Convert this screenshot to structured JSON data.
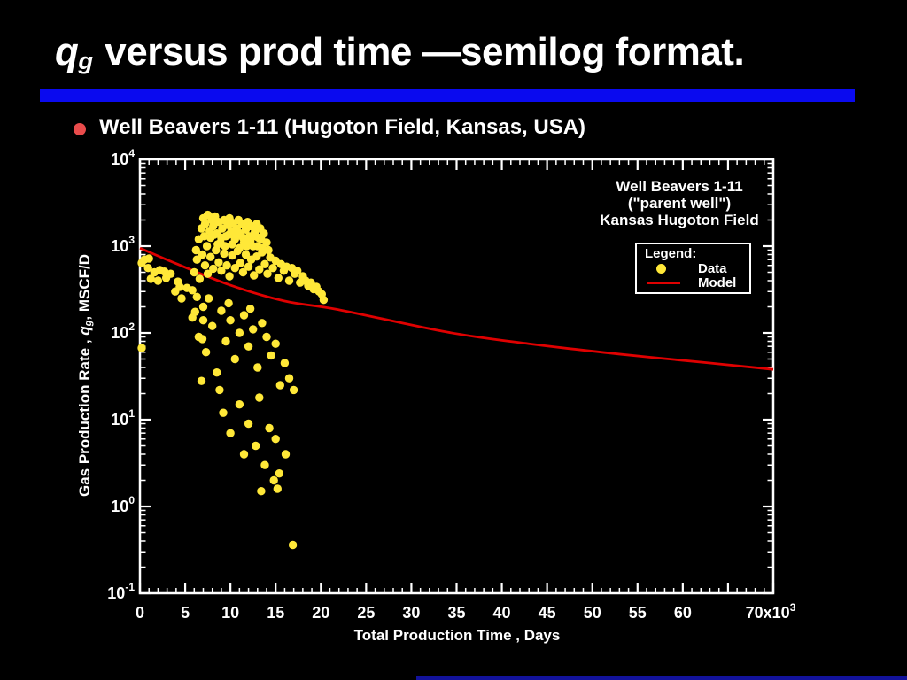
{
  "slide": {
    "title": {
      "q": "q",
      "q_sub": "g",
      "rest": " versus prod time —semilog format."
    },
    "bullet": {
      "text": "Well Beavers 1-11 (Hugoton Field, Kansas, USA)"
    }
  },
  "chart": {
    "annotation": {
      "line1": "Well Beavers 1-11",
      "line2": "(\"parent well\")",
      "line3": "Kansas Hugoton Field"
    },
    "legend": {
      "title": "Legend:",
      "data_label": "Data",
      "model_label": "Model"
    },
    "x_axis": {
      "label": "Total Production Time , Days",
      "tick_labels": [
        0,
        5,
        10,
        15,
        20,
        25,
        30,
        35,
        40,
        45,
        50,
        55,
        60
      ],
      "end_tick": {
        "text": "70x10",
        "exp": "3",
        "value": 70
      },
      "min": 0,
      "max": 70,
      "major_step": 5,
      "minor_step": 1
    },
    "y_axis": {
      "label_prefix": "Gas Production Rate , ",
      "label_var": "q",
      "label_var_sub": "g",
      "label_suffix": ", MSCF/D",
      "scale": "log",
      "decade_exponents": [
        4,
        3,
        2,
        1,
        0,
        -1
      ]
    }
  },
  "chart_data": {
    "type": "scatter",
    "title": "qg versus production time, semilog format",
    "xlabel": "Total Production Time , Days",
    "ylabel": "Gas Production Rate , qg, MSCF/D",
    "x_unit": "10^3 days",
    "y_unit": "MSCF/D",
    "xlim": [
      0,
      70
    ],
    "ylog_lim": [
      -1,
      4
    ],
    "grid": false,
    "legend_position": "upper-right",
    "series": [
      {
        "name": "Data",
        "type": "scatter",
        "color": "#FFE838",
        "points": [
          [
            0.2,
            640
          ],
          [
            0.5,
            700
          ],
          [
            0.9,
            560
          ],
          [
            1.0,
            720
          ],
          [
            1.2,
            420
          ],
          [
            1.6,
            500
          ],
          [
            2.0,
            400
          ],
          [
            2.2,
            530
          ],
          [
            2.7,
            510
          ],
          [
            2.9,
            430
          ],
          [
            3.4,
            480
          ],
          [
            3.9,
            300
          ],
          [
            4.2,
            390
          ],
          [
            4.4,
            340
          ],
          [
            4.6,
            250
          ],
          [
            5.2,
            330
          ],
          [
            5.8,
            310
          ],
          [
            6.1,
            175
          ],
          [
            6.3,
            260
          ],
          [
            6.9,
            85
          ],
          [
            7.0,
            140
          ],
          [
            0.2,
            67
          ],
          [
            6.2,
            900
          ],
          [
            6.5,
            1200
          ],
          [
            6.8,
            1600
          ],
          [
            7.0,
            2100
          ],
          [
            7.2,
            1800
          ],
          [
            7.5,
            2300
          ],
          [
            7.7,
            1500
          ],
          [
            7.9,
            2000
          ],
          [
            8.1,
            1700
          ],
          [
            8.3,
            2200
          ],
          [
            8.5,
            1400
          ],
          [
            8.7,
            1900
          ],
          [
            8.9,
            1100
          ],
          [
            9.1,
            1600
          ],
          [
            9.3,
            2000
          ],
          [
            9.5,
            1300
          ],
          [
            9.7,
            1750
          ],
          [
            9.9,
            2100
          ],
          [
            10.1,
            1500
          ],
          [
            10.3,
            1850
          ],
          [
            10.5,
            1200
          ],
          [
            10.7,
            1600
          ],
          [
            10.9,
            2000
          ],
          [
            11.1,
            1400
          ],
          [
            11.3,
            1800
          ],
          [
            11.5,
            1100
          ],
          [
            11.7,
            1550
          ],
          [
            11.9,
            1900
          ],
          [
            12.1,
            1300
          ],
          [
            12.3,
            1700
          ],
          [
            12.5,
            1000
          ],
          [
            12.7,
            1450
          ],
          [
            12.9,
            1800
          ],
          [
            13.1,
            1250
          ],
          [
            13.3,
            1600
          ],
          [
            13.5,
            950
          ],
          [
            7.1,
            1300
          ],
          [
            7.4,
            1000
          ],
          [
            7.8,
            1250
          ],
          [
            8.2,
            1350
          ],
          [
            8.6,
            1050
          ],
          [
            9.0,
            1250
          ],
          [
            9.4,
            1000
          ],
          [
            9.8,
            1350
          ],
          [
            10.2,
            1050
          ],
          [
            10.6,
            1300
          ],
          [
            11.0,
            950
          ],
          [
            11.4,
            1250
          ],
          [
            11.8,
            1000
          ],
          [
            12.2,
            1150
          ],
          [
            12.6,
            1300
          ],
          [
            13.0,
            1000
          ],
          [
            13.4,
            1200
          ],
          [
            13.7,
            1400
          ],
          [
            14.0,
            1100
          ],
          [
            14.2,
            900
          ],
          [
            6.0,
            500
          ],
          [
            6.3,
            700
          ],
          [
            6.6,
            420
          ],
          [
            6.9,
            800
          ],
          [
            7.2,
            600
          ],
          [
            7.5,
            480
          ],
          [
            7.8,
            750
          ],
          [
            8.1,
            550
          ],
          [
            8.4,
            900
          ],
          [
            8.7,
            650
          ],
          [
            9.0,
            520
          ],
          [
            9.3,
            820
          ],
          [
            9.6,
            600
          ],
          [
            9.9,
            450
          ],
          [
            10.2,
            780
          ],
          [
            10.5,
            560
          ],
          [
            10.8,
            880
          ],
          [
            11.1,
            640
          ],
          [
            11.4,
            500
          ],
          [
            11.7,
            800
          ],
          [
            12.0,
            580
          ],
          [
            12.3,
            700
          ],
          [
            12.6,
            460
          ],
          [
            12.9,
            760
          ],
          [
            13.2,
            540
          ],
          [
            13.5,
            850
          ],
          [
            13.8,
            620
          ],
          [
            14.1,
            480
          ],
          [
            14.4,
            740
          ],
          [
            14.7,
            560
          ],
          [
            15.0,
            680
          ],
          [
            15.3,
            430
          ],
          [
            15.6,
            620
          ],
          [
            15.9,
            520
          ],
          [
            16.2,
            580
          ],
          [
            16.5,
            400
          ],
          [
            16.8,
            560
          ],
          [
            17.1,
            480
          ],
          [
            17.4,
            520
          ],
          [
            17.7,
            380
          ],
          [
            18.0,
            450
          ],
          [
            18.3,
            400
          ],
          [
            18.6,
            350
          ],
          [
            18.9,
            380
          ],
          [
            19.2,
            320
          ],
          [
            19.5,
            340
          ],
          [
            19.8,
            300
          ],
          [
            20.1,
            280
          ],
          [
            20.3,
            240
          ],
          [
            5.8,
            150
          ],
          [
            6.5,
            90
          ],
          [
            7.0,
            200
          ],
          [
            7.3,
            60
          ],
          [
            7.6,
            250
          ],
          [
            8.0,
            120
          ],
          [
            8.5,
            35
          ],
          [
            8.8,
            22
          ],
          [
            9.0,
            180
          ],
          [
            9.5,
            80
          ],
          [
            9.8,
            220
          ],
          [
            10.0,
            140
          ],
          [
            10.5,
            50
          ],
          [
            11.0,
            100
          ],
          [
            11.5,
            160
          ],
          [
            12.0,
            70
          ],
          [
            12.2,
            190
          ],
          [
            12.5,
            110
          ],
          [
            13.0,
            40
          ],
          [
            13.5,
            130
          ],
          [
            14.0,
            90
          ],
          [
            14.5,
            55
          ],
          [
            15.0,
            75
          ],
          [
            15.5,
            25
          ],
          [
            16.0,
            45
          ],
          [
            16.5,
            30
          ],
          [
            17.0,
            22
          ],
          [
            6.8,
            28
          ],
          [
            9.2,
            12
          ],
          [
            10.0,
            7
          ],
          [
            11.0,
            15
          ],
          [
            11.5,
            4
          ],
          [
            12.0,
            9
          ],
          [
            12.8,
            5
          ],
          [
            13.2,
            18
          ],
          [
            13.4,
            1.5
          ],
          [
            13.8,
            3
          ],
          [
            14.3,
            8
          ],
          [
            14.8,
            2
          ],
          [
            15.0,
            6
          ],
          [
            15.2,
            1.6
          ],
          [
            15.4,
            2.4
          ],
          [
            16.1,
            4
          ],
          [
            16.9,
            0.36
          ]
        ]
      },
      {
        "name": "Model",
        "type": "line",
        "color": "#DF0101",
        "points": [
          [
            0,
            950
          ],
          [
            4,
            630
          ],
          [
            10,
            355
          ],
          [
            16,
            233
          ],
          [
            22,
            185
          ],
          [
            34,
            102
          ],
          [
            43,
            75
          ],
          [
            53,
            57
          ],
          [
            63,
            45
          ],
          [
            70,
            38
          ]
        ]
      }
    ]
  },
  "colors": {
    "background": "#000000",
    "title_bar_blue": "#0A0AEF",
    "bottom_bar_blue": "#12129B",
    "bullet_red": "#E94C4C",
    "data_yellow": "#FFE838",
    "model_red": "#DF0101",
    "axis_white": "#FFFFFF"
  }
}
